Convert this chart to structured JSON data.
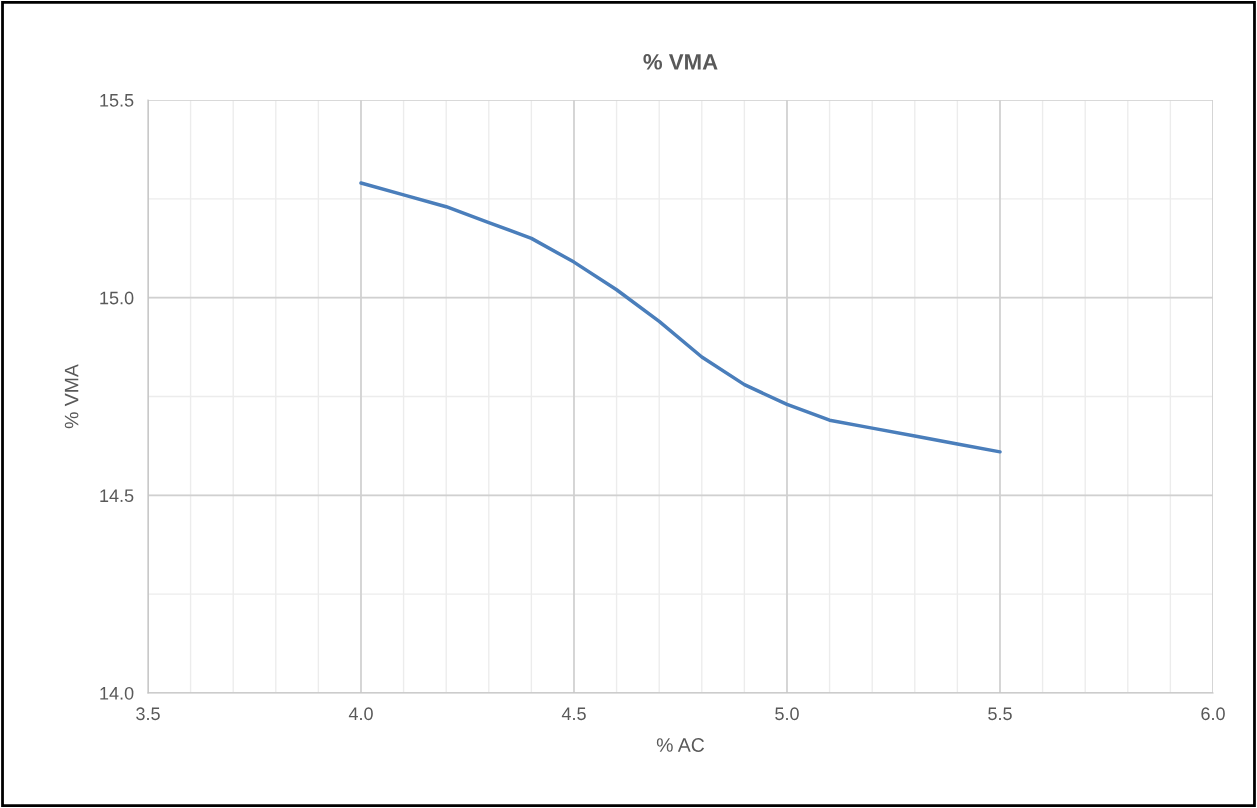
{
  "chart_data": {
    "type": "line",
    "title": "% VMA",
    "xlabel": "% AC",
    "ylabel": "% VMA",
    "x": [
      4.0,
      4.1,
      4.2,
      4.3,
      4.4,
      4.5,
      4.6,
      4.7,
      4.8,
      4.9,
      5.0,
      5.1,
      5.2,
      5.3,
      5.4,
      5.5
    ],
    "series": [
      {
        "color": "#4a7ebb",
        "values": [
          15.29,
          15.26,
          15.23,
          15.19,
          15.15,
          15.09,
          15.02,
          14.94,
          14.85,
          14.78,
          14.73,
          14.69,
          14.67,
          14.65,
          14.63,
          14.61
        ]
      }
    ],
    "xlim": [
      3.5,
      6.0
    ],
    "xticks": [
      {
        "value": 3.5,
        "label": "3.5"
      },
      {
        "value": 4.0,
        "label": "4.0"
      },
      {
        "value": 4.5,
        "label": "4.5"
      },
      {
        "value": 5.0,
        "label": "5.0"
      },
      {
        "value": 5.5,
        "label": "5.5"
      },
      {
        "value": 6.0,
        "label": "6.0"
      }
    ],
    "ylim": [
      14.0,
      15.5
    ],
    "yticks": [
      {
        "value": 14.0,
        "label": "14.0"
      },
      {
        "value": 14.5,
        "label": "14.5"
      },
      {
        "value": 15.0,
        "label": "15.0"
      },
      {
        "value": 15.5,
        "label": "15.5"
      }
    ],
    "grid": true,
    "marker": "none",
    "line_style": "solid"
  }
}
